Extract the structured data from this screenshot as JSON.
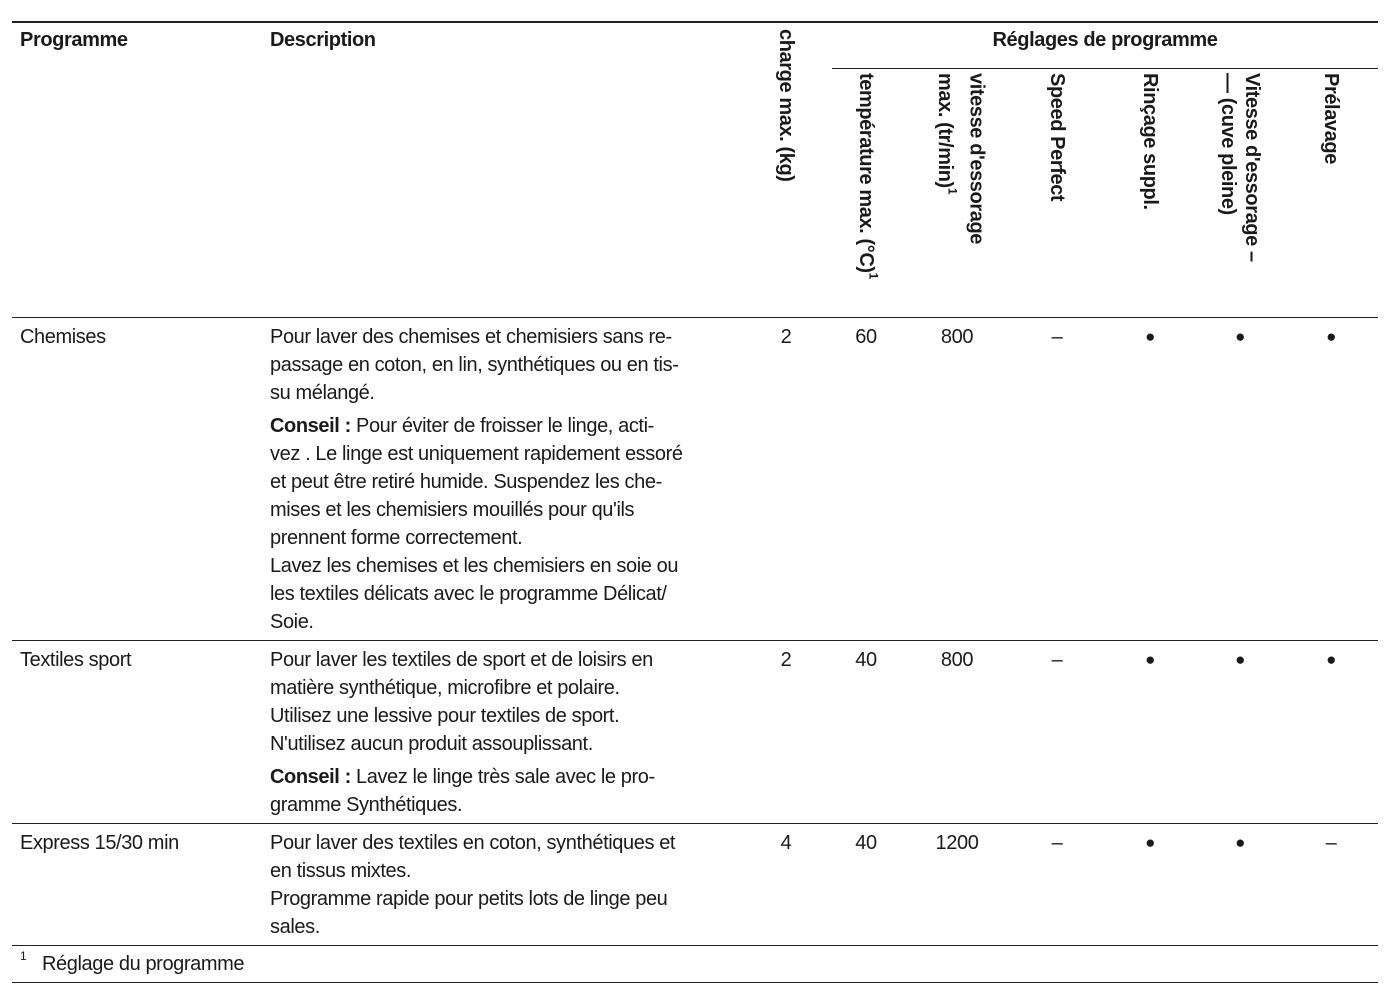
{
  "table": {
    "header": {
      "programme": "Programme",
      "description": "Description",
      "charge": "charge max. (kg)",
      "group": "Réglages de programme",
      "settings": [
        {
          "lines": [
            "température max. (°C)"
          ],
          "note": "1"
        },
        {
          "lines": [
            "vitesse d'essorage",
            "max. (tr/min)"
          ],
          "note": "1"
        },
        {
          "lines": [
            "Speed Perfect"
          ]
        },
        {
          "lines": [
            "Rinçage suppl."
          ]
        },
        {
          "lines": [
            "Vitesse d'essorage –",
            "— (cuve pleine)"
          ]
        },
        {
          "lines": [
            "Prélavage"
          ]
        }
      ]
    },
    "rows": [
      {
        "programme": "Chemises",
        "description": [
          {
            "lines": [
              "Pour laver des chemises et chemisiers sans re-",
              "passage en coton, en lin, synthétiques ou en tis-",
              "su mélangé."
            ]
          },
          {
            "label": "Conseil :",
            "lines": [
              " Pour éviter de froisser le linge, acti-",
              "vez . Le linge est uniquement rapidement essoré",
              "et peut être retiré humide. Suspendez les che-",
              "mises et les chemisiers mouillés pour qu'ils",
              "prennent forme correctement."
            ]
          },
          {
            "lines": [
              "Lavez les chemises et les chemisiers en soie ou",
              "les textiles délicats avec le programme Délicat/",
              "Soie."
            ]
          }
        ],
        "values": [
          2,
          60,
          800,
          "–",
          "●",
          "●",
          "●"
        ]
      },
      {
        "programme": "Textiles sport",
        "description": [
          {
            "lines": [
              "Pour laver les textiles de sport et de loisirs en",
              "matière synthétique, microfibre et polaire.",
              "Utilisez une lessive pour textiles de sport.",
              "N'utilisez aucun produit assouplissant."
            ]
          },
          {
            "label": "Conseil :",
            "lines": [
              " Lavez le linge très sale avec le pro-",
              "gramme Synthétiques."
            ]
          }
        ],
        "values": [
          2,
          40,
          800,
          "–",
          "●",
          "●",
          "●"
        ]
      },
      {
        "programme": "Express 15/30 min",
        "description": [
          {
            "lines": [
              "Pour laver des textiles en coton, synthétiques et",
              "en tissus mixtes.",
              "Programme rapide pour petits lots de linge peu",
              "sales."
            ]
          }
        ],
        "values": [
          4,
          40,
          1200,
          "–",
          "●",
          "●",
          "–"
        ]
      }
    ],
    "footnote": {
      "mark": "1",
      "text": "Réglage du programme"
    }
  }
}
